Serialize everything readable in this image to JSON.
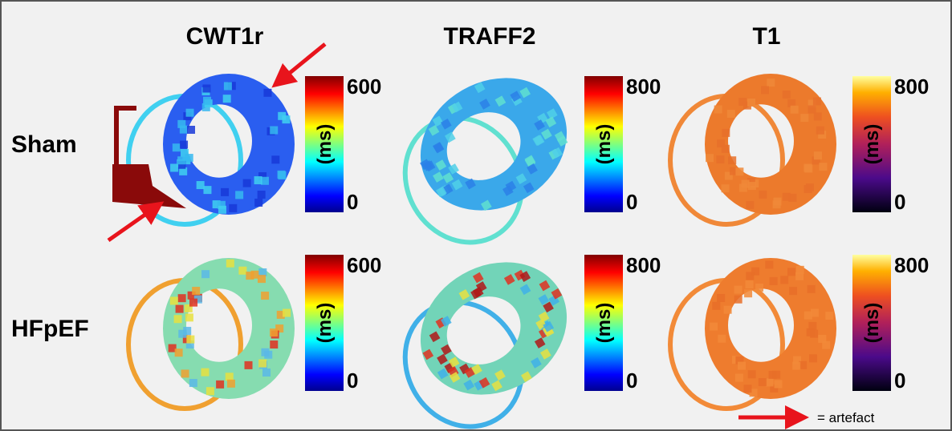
{
  "columns": [
    {
      "title": "CWT1r"
    },
    {
      "title": "TRAFF2"
    },
    {
      "title": "T1"
    }
  ],
  "rows": [
    {
      "label": "Sham",
      "colorbars": [
        {
          "max": 600,
          "min": 0,
          "unit": "(ms)"
        },
        {
          "max": 800,
          "min": 0,
          "unit": "(ms)"
        },
        {
          "max": 800,
          "min": 0,
          "unit": "(ms)"
        }
      ]
    },
    {
      "label": "HFpEF",
      "colorbars": [
        {
          "max": 600,
          "min": 0,
          "unit": "(ms)"
        },
        {
          "max": 800,
          "min": 0,
          "unit": "(ms)"
        },
        {
          "max": 800,
          "min": 0,
          "unit": "(ms)"
        }
      ]
    }
  ],
  "legend": {
    "text": "= artefact"
  }
}
